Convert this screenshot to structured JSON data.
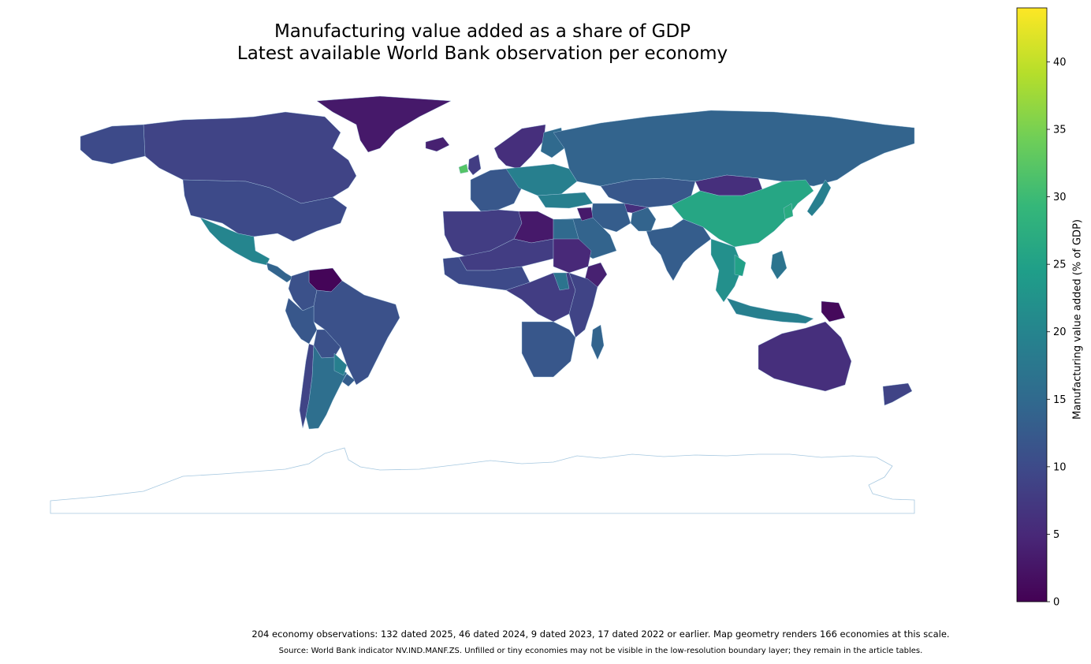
{
  "title": "Manufacturing value added as a share of GDP",
  "subtitle": "Latest available World Bank observation per economy",
  "colorbar": {
    "label": "Manufacturing value added (% of GDP)",
    "min": 0,
    "max": 44,
    "ticks": [
      "0",
      "5",
      "10",
      "15",
      "20",
      "25",
      "30",
      "35",
      "40"
    ],
    "colormap": "viridis"
  },
  "footnote": "204 economy observations: 132 dated 2025, 46 dated 2024, 9 dated 2023, 17 dated 2022 or earlier. Map geometry renders 166 economies at this scale.",
  "source": "Source: World Bank indicator NV.IND.MANF.ZS. Unfilled or tiny economies may not be visible in the low-resolution boundary layer; they remain in the article tables.",
  "colors": {
    "viridis": [
      "#440154",
      "#482878",
      "#3e4989",
      "#31688e",
      "#26828e",
      "#1f9e89",
      "#35b779",
      "#6ece58",
      "#b5de2b",
      "#fde725"
    ],
    "boundary": "#a6c8e0"
  },
  "map_regions": [
    {
      "name": "Greenland",
      "value": 3
    },
    {
      "name": "Canada",
      "value": 9
    },
    {
      "name": "Alaska",
      "value": 10
    },
    {
      "name": "United States",
      "value": 10
    },
    {
      "name": "Mexico",
      "value": 20
    },
    {
      "name": "Central America",
      "value": 14
    },
    {
      "name": "Venezuela",
      "value": 0.5
    },
    {
      "name": "Colombia",
      "value": 11
    },
    {
      "name": "Brazil",
      "value": 11
    },
    {
      "name": "Peru",
      "value": 12
    },
    {
      "name": "Bolivia",
      "value": 11
    },
    {
      "name": "Chile",
      "value": 9
    },
    {
      "name": "Argentina",
      "value": 16
    },
    {
      "name": "Paraguay",
      "value": 19
    },
    {
      "name": "Uruguay",
      "value": 13
    },
    {
      "name": "Iceland",
      "value": 4
    },
    {
      "name": "Ireland",
      "value": 32
    },
    {
      "name": "United Kingdom",
      "value": 8
    },
    {
      "name": "Scandinavia",
      "value": 6
    },
    {
      "name": "Finland",
      "value": 15
    },
    {
      "name": "Western Europe",
      "value": 12
    },
    {
      "name": "Central Europe",
      "value": 19
    },
    {
      "name": "Russia",
      "value": 14
    },
    {
      "name": "Kazakhstan",
      "value": 12
    },
    {
      "name": "Mongolia",
      "value": 6
    },
    {
      "name": "China",
      "value": 26
    },
    {
      "name": "Korea",
      "value": 27
    },
    {
      "name": "Japan",
      "value": 19
    },
    {
      "name": "India",
      "value": 13
    },
    {
      "name": "Pakistan",
      "value": 14
    },
    {
      "name": "Afghanistan",
      "value": 6
    },
    {
      "name": "Iran",
      "value": 13
    },
    {
      "name": "Turkey",
      "value": 19
    },
    {
      "name": "Saudi Arabia",
      "value": 14
    },
    {
      "name": "Iraq",
      "value": 3
    },
    {
      "name": "Southeast Asia",
      "value": 22
    },
    {
      "name": "Vietnam",
      "value": 25
    },
    {
      "name": "Indonesia",
      "value": 19
    },
    {
      "name": "Philippines",
      "value": 17
    },
    {
      "name": "Papua New Guinea",
      "value": 1
    },
    {
      "name": "Australia",
      "value": 6
    },
    {
      "name": "New Zealand",
      "value": 9
    },
    {
      "name": "North Africa",
      "value": 8
    },
    {
      "name": "Libya",
      "value": 3
    },
    {
      "name": "Egypt",
      "value": 15
    },
    {
      "name": "Sahel",
      "value": 8
    },
    {
      "name": "West Africa",
      "value": 10
    },
    {
      "name": "Sudan region",
      "value": 5
    },
    {
      "name": "Horn of Africa",
      "value": 4
    },
    {
      "name": "Central Africa",
      "value": 8
    },
    {
      "name": "East Africa",
      "value": 9
    },
    {
      "name": "Southern Africa",
      "value": 12
    },
    {
      "name": "Madagascar",
      "value": 14
    },
    {
      "name": "Ethiopia",
      "value": 17
    }
  ]
}
